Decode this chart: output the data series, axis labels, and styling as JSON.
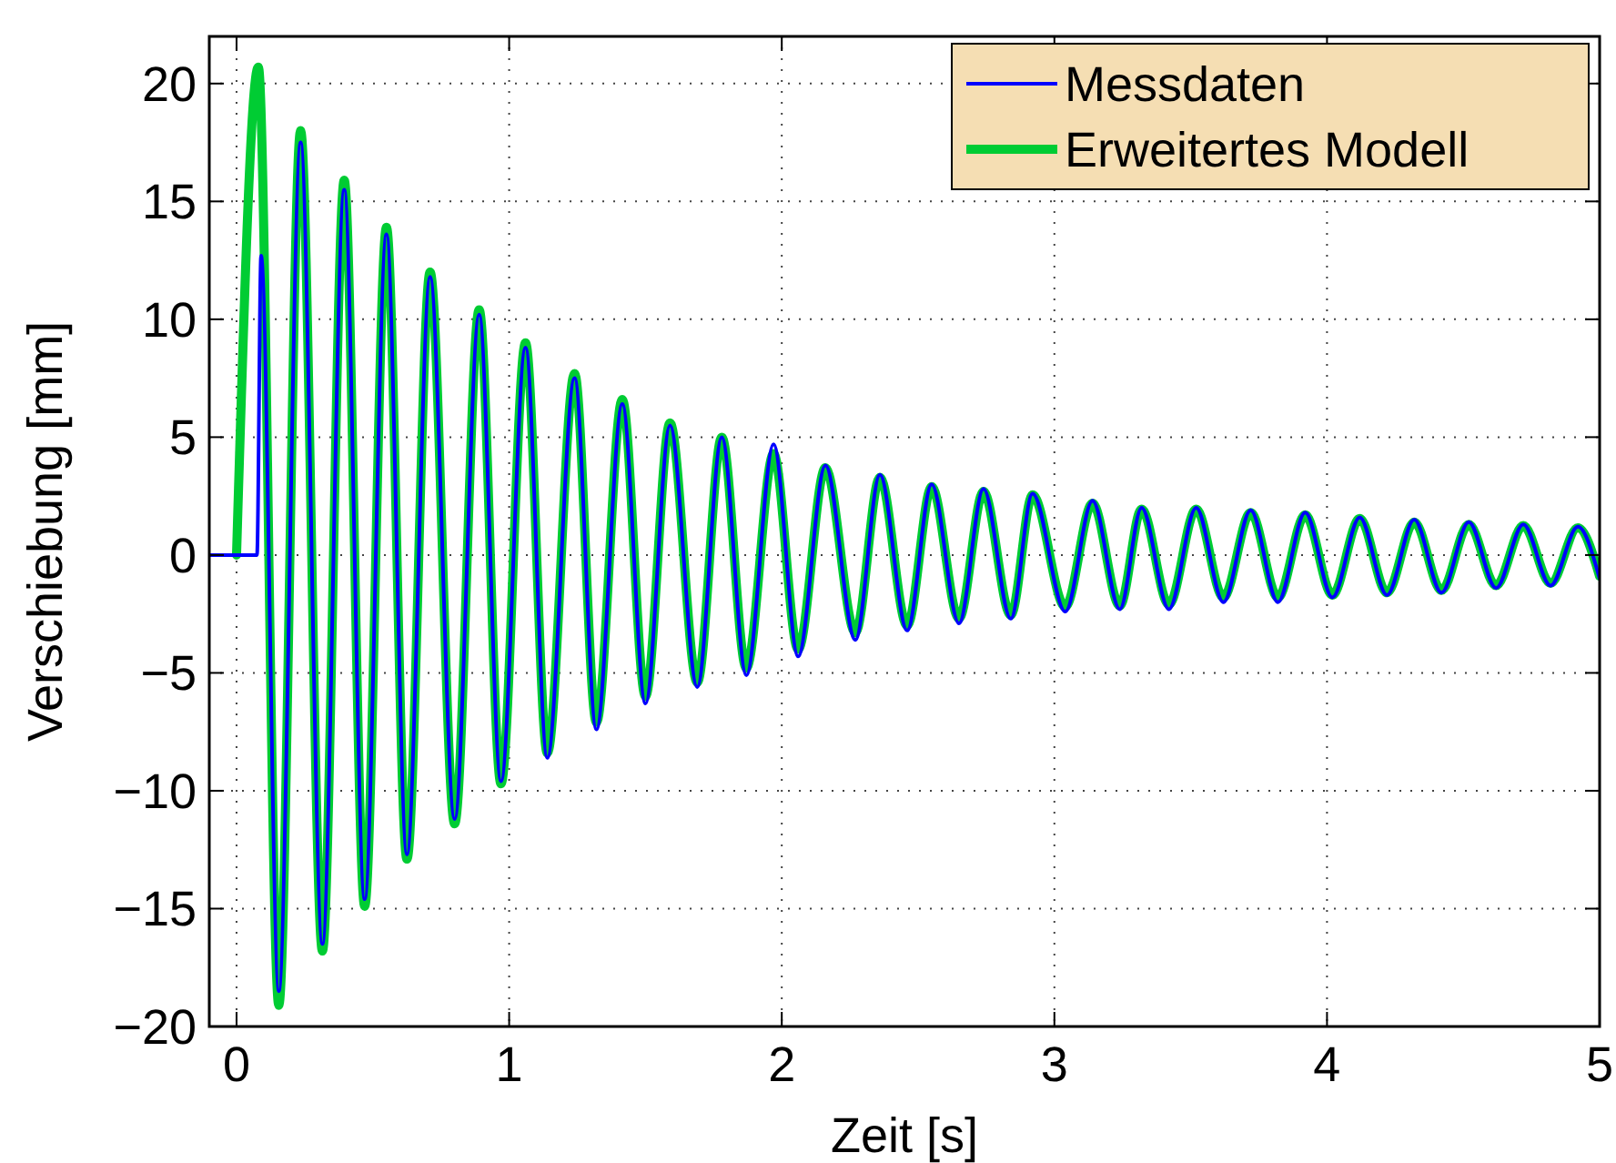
{
  "chart_data": {
    "type": "line",
    "xlabel": "Zeit [s]",
    "ylabel": "Verschiebung [mm]",
    "xlim": [
      -0.1,
      5
    ],
    "xticks": [
      0,
      1,
      2,
      3,
      4,
      5
    ],
    "ylim": [
      -20,
      22
    ],
    "yticks": [
      {
        "value": -20,
        "label": "−20"
      },
      {
        "value": -15,
        "label": "−15"
      },
      {
        "value": -10,
        "label": "−10"
      },
      {
        "value": -5,
        "label": "−5"
      },
      0,
      5,
      10,
      15,
      20
    ],
    "grid": true,
    "legend": "top right",
    "line_style": "solid",
    "marker": "none",
    "series": [
      {
        "name": "Messdaten",
        "color": "#0000ff",
        "x": [
          -0.1,
          0.075,
          0.09,
          0.155,
          0.235,
          0.315,
          0.395,
          0.47,
          0.55,
          0.625,
          0.71,
          0.8,
          0.89,
          0.97,
          1.06,
          1.14,
          1.24,
          1.32,
          1.415,
          1.5,
          1.59,
          1.69,
          1.78,
          1.87,
          1.97,
          2.06,
          2.16,
          2.27,
          2.36,
          2.46,
          2.55,
          2.65,
          2.74,
          2.84,
          2.92,
          3.04,
          3.14,
          3.24,
          3.32,
          3.42,
          3.52,
          3.62,
          3.72,
          3.82,
          3.92,
          4.02,
          4.12,
          4.22,
          4.32,
          4.42,
          4.52,
          4.62,
          4.72,
          4.82,
          4.92,
          5.0
        ],
        "values": [
          0,
          0,
          12.7,
          -18.5,
          17.5,
          -16.5,
          15.5,
          -14.6,
          13.6,
          -12.7,
          11.8,
          -11.2,
          10.2,
          -9.6,
          8.8,
          -8.6,
          7.5,
          -7.4,
          6.4,
          -6.3,
          5.5,
          -5.6,
          5.0,
          -5.1,
          4.7,
          -4.3,
          3.8,
          -3.6,
          3.4,
          -3.2,
          3.0,
          -2.9,
          2.8,
          -2.7,
          2.6,
          -2.4,
          2.3,
          -2.3,
          2.0,
          -2.3,
          2.0,
          -2.0,
          1.9,
          -2.0,
          1.8,
          -1.8,
          1.6,
          -1.7,
          1.5,
          -1.6,
          1.4,
          -1.4,
          1.3,
          -1.3,
          1.2,
          -1.0
        ]
      },
      {
        "name": "Erweitertes Modell",
        "color": "#00cc33",
        "x": [
          0,
          0.08,
          0.155,
          0.235,
          0.315,
          0.395,
          0.47,
          0.55,
          0.625,
          0.71,
          0.8,
          0.89,
          0.97,
          1.06,
          1.14,
          1.24,
          1.32,
          1.415,
          1.5,
          1.59,
          1.69,
          1.78,
          1.87,
          1.97,
          2.06,
          2.16,
          2.27,
          2.36,
          2.46,
          2.55,
          2.65,
          2.74,
          2.84,
          2.92,
          3.04,
          3.14,
          3.24,
          3.32,
          3.42,
          3.52,
          3.62,
          3.72,
          3.82,
          3.92,
          4.02,
          4.12,
          4.22,
          4.32,
          4.42,
          4.52,
          4.62,
          4.72,
          4.82,
          4.92,
          5.0
        ],
        "values": [
          0,
          20.7,
          -19.1,
          18.0,
          -16.8,
          15.9,
          -14.9,
          13.9,
          -12.9,
          12.0,
          -11.4,
          10.4,
          -9.7,
          9.0,
          -8.4,
          7.7,
          -7.1,
          6.6,
          -6.0,
          5.6,
          -5.4,
          5.0,
          -4.8,
          4.3,
          -4.0,
          3.7,
          -3.3,
          3.3,
          -3.0,
          2.9,
          -2.7,
          2.7,
          -2.55,
          2.55,
          -2.2,
          2.2,
          -2.15,
          1.95,
          -2.1,
          1.95,
          -1.8,
          1.8,
          -1.8,
          1.7,
          -1.7,
          1.55,
          -1.6,
          1.4,
          -1.5,
          1.3,
          -1.3,
          1.25,
          -1.2,
          1.15,
          -0.9
        ]
      }
    ]
  }
}
